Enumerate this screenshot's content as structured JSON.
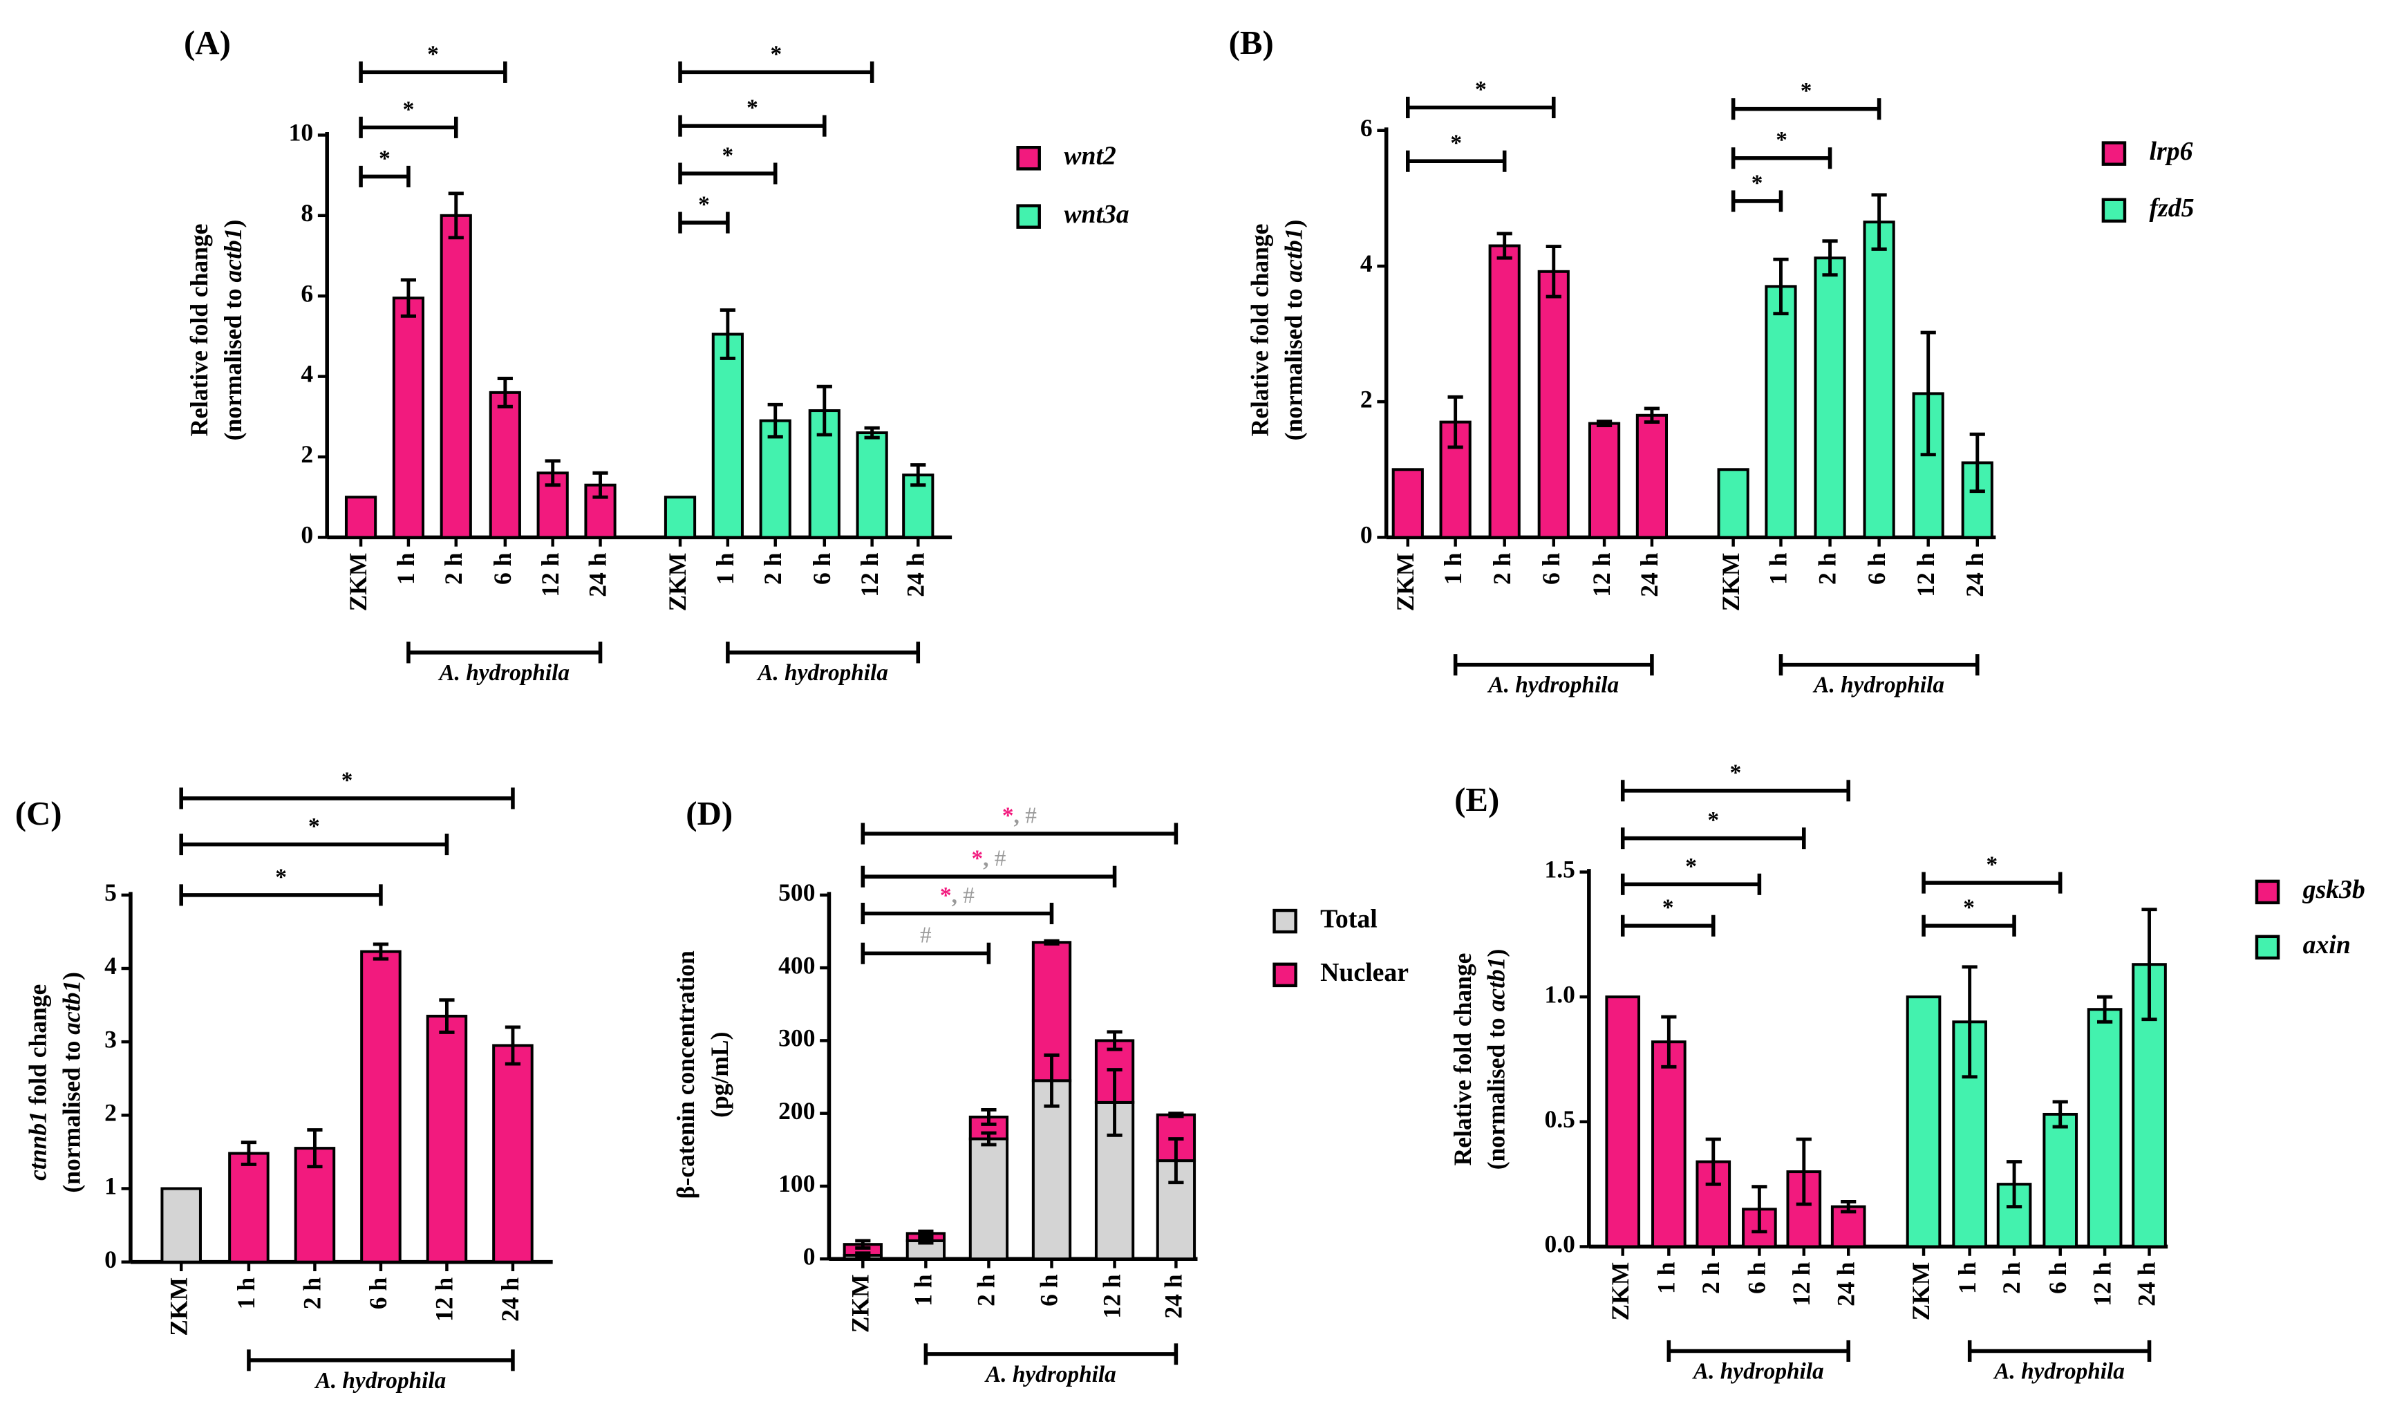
{
  "colors": {
    "pink": "#f21a7e",
    "green": "#43f2ae",
    "grey": "#d4d4d4",
    "hash": "#9a9a9a"
  },
  "chart_data": [
    {
      "panel_label": "(A)",
      "type": "bar",
      "ylabel": [
        [
          {
            "text": "Relative fold change"
          }
        ],
        [
          {
            "text": "(normalised to "
          },
          {
            "text": "actb1",
            "italic": true
          },
          {
            "text": ")"
          }
        ]
      ],
      "ylim": [
        0,
        10
      ],
      "yticks": [
        0,
        2,
        4,
        6,
        8,
        10
      ],
      "categories": [
        "ZKM",
        "1 h",
        "2 h",
        "6 h",
        "12 h",
        "24 h"
      ],
      "group_label": "A. hydrophila",
      "series": [
        {
          "name": "wnt2",
          "color": "#f21a7e",
          "values": [
            1.0,
            5.95,
            8.0,
            3.6,
            1.6,
            1.3
          ],
          "errors": [
            0,
            0.45,
            0.55,
            0.35,
            0.3,
            0.3
          ]
        },
        {
          "name": "wnt3a",
          "color": "#43f2ae",
          "values": [
            1.0,
            5.05,
            2.9,
            3.15,
            2.6,
            1.55
          ],
          "errors": [
            0,
            0.6,
            0.4,
            0.6,
            0.12,
            0.25
          ]
        }
      ],
      "significance": [
        {
          "series": 0,
          "from": "ZKM",
          "to": "1 h",
          "label": "*"
        },
        {
          "series": 0,
          "from": "ZKM",
          "to": "2 h",
          "label": "*"
        },
        {
          "series": 0,
          "from": "ZKM",
          "to": "6 h",
          "label": "*"
        },
        {
          "series": 1,
          "from": "ZKM",
          "to": "1 h",
          "label": "*"
        },
        {
          "series": 1,
          "from": "ZKM",
          "to": "2 h",
          "label": "*"
        },
        {
          "series": 1,
          "from": "ZKM",
          "to": "6 h",
          "label": "*"
        },
        {
          "series": 1,
          "from": "ZKM",
          "to": "12 h",
          "label": "*"
        }
      ],
      "legend": [
        "wnt2",
        "wnt3a"
      ],
      "legend_position": "right"
    },
    {
      "panel_label": "(B)",
      "type": "bar",
      "ylabel": [
        [
          {
            "text": "Relative fold change"
          }
        ],
        [
          {
            "text": "(normalised to "
          },
          {
            "text": "actb1",
            "italic": true
          },
          {
            "text": ")"
          }
        ]
      ],
      "ylim": [
        0,
        6
      ],
      "yticks": [
        0,
        2,
        4,
        6
      ],
      "categories": [
        "ZKM",
        "1 h",
        "2 h",
        "6 h",
        "12 h",
        "24 h"
      ],
      "group_label": "A. hydrophila",
      "series": [
        {
          "name": "lrp6",
          "color": "#f21a7e",
          "values": [
            1.0,
            1.7,
            4.3,
            3.92,
            1.68,
            1.8
          ],
          "errors": [
            0,
            0.37,
            0.18,
            0.37,
            0.03,
            0.1
          ]
        },
        {
          "name": "fzd5",
          "color": "#43f2ae",
          "values": [
            1.0,
            3.7,
            4.12,
            4.65,
            2.12,
            1.1
          ],
          "errors": [
            0,
            0.4,
            0.25,
            0.4,
            0.9,
            0.42
          ]
        }
      ],
      "significance": [
        {
          "series": 0,
          "from": "ZKM",
          "to": "2 h",
          "label": "*"
        },
        {
          "series": 0,
          "from": "ZKM",
          "to": "6 h",
          "label": "*"
        },
        {
          "series": 1,
          "from": "ZKM",
          "to": "1 h",
          "label": "*"
        },
        {
          "series": 1,
          "from": "ZKM",
          "to": "2 h",
          "label": "*"
        },
        {
          "series": 1,
          "from": "ZKM",
          "to": "6 h",
          "label": "*"
        }
      ],
      "legend": [
        "lrp6",
        "fzd5"
      ],
      "legend_position": "right"
    },
    {
      "panel_label": "(C)",
      "type": "bar",
      "ylabel": [
        [
          {
            "text": "ctnnb1",
            "italic": true
          },
          {
            "text": " fold change"
          }
        ],
        [
          {
            "text": "(normalised to "
          },
          {
            "text": "actb1",
            "italic": true
          },
          {
            "text": ")"
          }
        ]
      ],
      "ylim": [
        0,
        5
      ],
      "yticks": [
        0,
        1,
        2,
        3,
        4,
        5
      ],
      "categories": [
        "ZKM",
        "1 h",
        "2 h",
        "6 h",
        "12 h",
        "24 h"
      ],
      "group_label": "A. hydrophila",
      "series": [
        {
          "name": "ctnnb1",
          "color": "#f21a7e",
          "control_color": "#d4d4d4",
          "values": [
            1.0,
            1.48,
            1.55,
            4.23,
            3.35,
            2.95
          ],
          "errors": [
            0,
            0.15,
            0.25,
            0.1,
            0.22,
            0.25
          ]
        }
      ],
      "significance": [
        {
          "series": 0,
          "from": "ZKM",
          "to": "6 h",
          "label": "*"
        },
        {
          "series": 0,
          "from": "ZKM",
          "to": "12 h",
          "label": "*"
        },
        {
          "series": 0,
          "from": "ZKM",
          "to": "24 h",
          "label": "*"
        }
      ],
      "legend": []
    },
    {
      "panel_label": "(D)",
      "type": "stacked-bar",
      "ylabel": [
        [
          {
            "text": "β-catenin concentration"
          }
        ],
        [
          {
            "text": "(pg/mL)"
          }
        ]
      ],
      "ylim": [
        0,
        500
      ],
      "yticks": [
        0,
        100,
        200,
        300,
        400,
        500
      ],
      "categories": [
        "ZKM",
        "1 h",
        "2 h",
        "6 h",
        "12 h",
        "24 h"
      ],
      "group_label": "A. hydrophila",
      "series": [
        {
          "name": "Total",
          "color": "#d4d4d4",
          "values": [
            5,
            25,
            165,
            245,
            215,
            135
          ],
          "errors": [
            3,
            3,
            8,
            35,
            45,
            30
          ]
        },
        {
          "name": "Nuclear",
          "color": "#f21a7e",
          "values": [
            15,
            10,
            30,
            190,
            85,
            63
          ],
          "errors": [
            5,
            3,
            10,
            2,
            12,
            2
          ]
        }
      ],
      "significance": [
        {
          "series": 0,
          "from": "ZKM",
          "to": "2 h",
          "label": "#"
        },
        {
          "series": 0,
          "from": "ZKM",
          "to": "6 h",
          "label": "*, #"
        },
        {
          "series": 0,
          "from": "ZKM",
          "to": "12 h",
          "label": "*, #"
        },
        {
          "series": 0,
          "from": "ZKM",
          "to": "24 h",
          "label": "*, #"
        }
      ],
      "legend": [
        "Total",
        "Nuclear"
      ],
      "legend_position": "right"
    },
    {
      "panel_label": "(E)",
      "type": "bar",
      "ylabel": [
        [
          {
            "text": "Relative fold change"
          }
        ],
        [
          {
            "text": "(normalised to "
          },
          {
            "text": "actb1",
            "italic": true
          },
          {
            "text": ")"
          }
        ]
      ],
      "ylim": [
        0,
        1.5
      ],
      "yticks": [
        0,
        0.5,
        1.0,
        1.5
      ],
      "ytick_labels": [
        "0.0",
        "0.5",
        "1.0",
        "1.5"
      ],
      "categories": [
        "ZKM",
        "1 h",
        "2 h",
        "6 h",
        "12 h",
        "24 h"
      ],
      "group_label": "A. hydrophila",
      "series": [
        {
          "name": "gsk3b",
          "color": "#f21a7e",
          "values": [
            1.0,
            0.82,
            0.34,
            0.15,
            0.3,
            0.16
          ],
          "errors": [
            0,
            0.1,
            0.09,
            0.09,
            0.13,
            0.02
          ]
        },
        {
          "name": "axin",
          "color": "#43f2ae",
          "values": [
            1.0,
            0.9,
            0.25,
            0.53,
            0.95,
            1.13
          ],
          "errors": [
            0,
            0.22,
            0.09,
            0.05,
            0.05,
            0.22
          ]
        }
      ],
      "significance": [
        {
          "series": 0,
          "from": "ZKM",
          "to": "2 h",
          "label": "*"
        },
        {
          "series": 0,
          "from": "ZKM",
          "to": "6 h",
          "label": "*"
        },
        {
          "series": 0,
          "from": "ZKM",
          "to": "12 h",
          "label": "*"
        },
        {
          "series": 0,
          "from": "ZKM",
          "to": "24 h",
          "label": "*"
        },
        {
          "series": 1,
          "from": "ZKM",
          "to": "2 h",
          "label": "*"
        },
        {
          "series": 1,
          "from": "ZKM",
          "to": "6 h",
          "label": "*"
        }
      ],
      "legend": [
        "gsk3b",
        "axin"
      ],
      "legend_position": "right"
    }
  ]
}
